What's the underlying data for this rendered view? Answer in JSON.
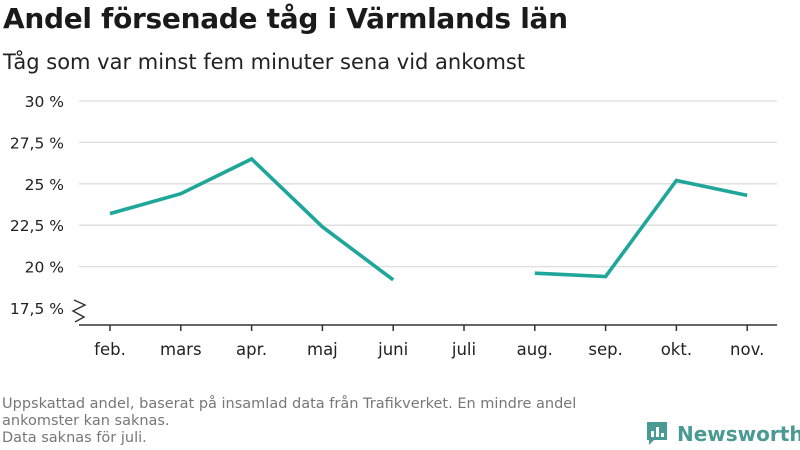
{
  "title": "Andel försenade tåg i Värmlands län",
  "subtitle": "Tåg som var minst fem minuter sena vid ankomst",
  "footnote": {
    "line1": "Uppskattad andel, baserat på insamlad data från Trafikverket. En mindre andel ankomster kan saknas.",
    "line2": "Data saknas för juli."
  },
  "brand": {
    "name": "Newsworthy"
  },
  "colors": {
    "line": "#1fa69a",
    "grid": "#dddddd",
    "axis": "#333333",
    "tick_text": "#222222",
    "brand": "#4a9a94"
  },
  "chart_data": {
    "type": "line",
    "title": "Andel försenade tåg i Värmlands län",
    "subtitle": "Tåg som var minst fem minuter sena vid ankomst",
    "xlabel": "",
    "ylabel": "",
    "categories": [
      "feb.",
      "mars",
      "apr.",
      "maj",
      "juni",
      "juli",
      "aug.",
      "sep.",
      "okt.",
      "nov."
    ],
    "values": [
      23.2,
      24.4,
      26.5,
      22.4,
      19.2,
      null,
      19.6,
      19.4,
      25.2,
      24.3
    ],
    "ylim": [
      17.5,
      30
    ],
    "yticks": [
      17.5,
      20,
      22.5,
      25,
      27.5,
      30
    ],
    "ytick_labels": [
      "17,5 %",
      "20 %",
      "22,5 %",
      "25 %",
      "27,5 %",
      "30 %"
    ],
    "grid": true,
    "axis_break": true
  }
}
